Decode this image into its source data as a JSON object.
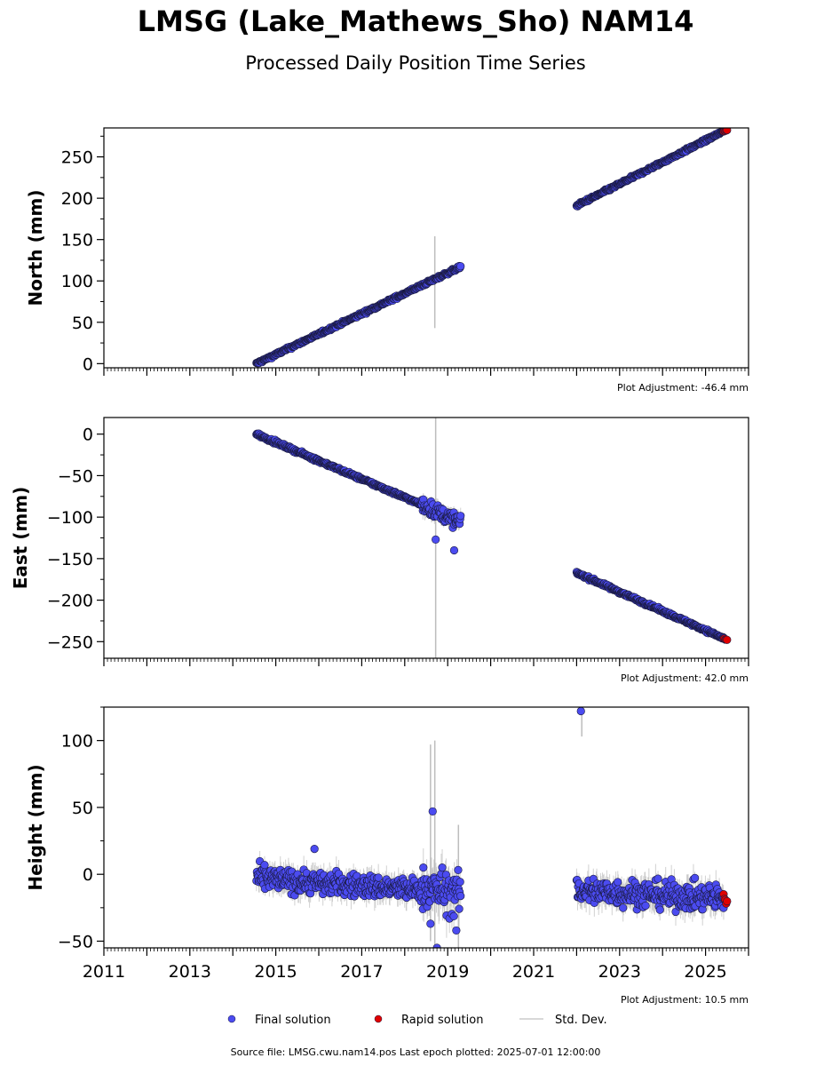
{
  "title": "LMSG (Lake_Mathews_Sho) NAM14",
  "subtitle": "Processed Daily Position Time Series",
  "footer": "Source file: LMSG.cwu.nam14.pos  Last epoch plotted: 2025-07-01 12:00:00",
  "legend": [
    {
      "label": "Final solution",
      "kind": "marker",
      "color": "#4b4bf0"
    },
    {
      "label": "Rapid solution",
      "kind": "marker",
      "color": "#e00000"
    },
    {
      "label": "Std. Dev.",
      "kind": "line",
      "color": "#cccccc"
    }
  ],
  "x_axis": {
    "range": [
      2011.0,
      2026.0
    ],
    "tick_values": [
      2011,
      2013,
      2015,
      2017,
      2019,
      2021,
      2023,
      2025
    ],
    "tick_labels": [
      "2011",
      "2013",
      "2015",
      "2017",
      "2019",
      "2021",
      "2023",
      "2025"
    ]
  },
  "colors": {
    "final": "#4b4bf0",
    "rapid": "#e00000",
    "stddev": "#bdbdbd",
    "edge": "#1a1a40"
  },
  "chart_data": [
    {
      "type": "scatter",
      "ylabel": "North (mm)",
      "adjustment": "Plot Adjustment: -46.4 mm",
      "xlim": [
        2011.0,
        2026.0
      ],
      "ylim": [
        -5,
        285
      ],
      "yticks": [
        0,
        50,
        100,
        150,
        200,
        250
      ],
      "ytick_labels": [
        "0",
        "50",
        "100",
        "150",
        "200",
        "250"
      ],
      "series": [
        {
          "name": "Final solution",
          "segments": [
            {
              "x0": 2014.55,
              "x1": 2019.3,
              "y0": 0,
              "y1": 117,
              "noise": 1.2
            },
            {
              "x0": 2022.0,
              "x1": 2025.42,
              "y0": 191,
              "y1": 281,
              "noise": 1.2
            }
          ],
          "outliers": []
        },
        {
          "name": "Rapid solution",
          "segments": [
            {
              "x0": 2025.42,
              "x1": 2025.5,
              "y0": 281,
              "y1": 283,
              "noise": 0.6
            }
          ]
        }
      ],
      "stddev_spikes": [
        {
          "x": 2018.7,
          "low": 43,
          "high": 154
        }
      ]
    },
    {
      "type": "scatter",
      "ylabel": "East (mm)",
      "adjustment": "Plot Adjustment: 42.0 mm",
      "xlim": [
        2011.0,
        2026.0
      ],
      "ylim": [
        -270,
        20
      ],
      "yticks": [
        0,
        -50,
        -100,
        -150,
        -200,
        -250
      ],
      "ytick_labels": [
        "0",
        "−50",
        "−100",
        "−150",
        "−200",
        "−250"
      ],
      "series": [
        {
          "name": "Final solution",
          "segments": [
            {
              "x0": 2014.55,
              "x1": 2018.4,
              "y0": 0,
              "y1": -85,
              "noise": 1.3
            },
            {
              "x0": 2018.4,
              "x1": 2019.3,
              "y0": -85,
              "y1": -107,
              "noise": 6
            },
            {
              "x0": 2022.0,
              "x1": 2025.42,
              "y0": -167,
              "y1": -246,
              "noise": 1.3
            }
          ],
          "outliers": [
            {
              "x": 2018.72,
              "y": -127
            },
            {
              "x": 2019.15,
              "y": -140
            }
          ]
        },
        {
          "name": "Rapid solution",
          "segments": [
            {
              "x0": 2025.42,
              "x1": 2025.5,
              "y0": -246,
              "y1": -248,
              "noise": 0.6
            }
          ]
        }
      ],
      "stddev_spikes": [
        {
          "x": 2018.72,
          "low": -270,
          "high": 20
        }
      ]
    },
    {
      "type": "scatter",
      "ylabel": "Height (mm)",
      "adjustment": "Plot Adjustment: 10.5 mm",
      "xlim": [
        2011.0,
        2026.0
      ],
      "ylim": [
        -55,
        125
      ],
      "yticks": [
        100,
        50,
        0,
        -50
      ],
      "ytick_labels": [
        "100",
        "50",
        "0",
        "−50"
      ],
      "series": [
        {
          "name": "Final solution",
          "segments": [
            {
              "x0": 2014.55,
              "x1": 2018.4,
              "y0": -3,
              "y1": -12,
              "noise": 6
            },
            {
              "x0": 2018.4,
              "x1": 2019.3,
              "y0": -10,
              "y1": -15,
              "noise": 11
            },
            {
              "x0": 2022.0,
              "x1": 2025.42,
              "y0": -12,
              "y1": -18,
              "noise": 7
            }
          ],
          "outliers": [
            {
              "x": 2015.9,
              "y": 19
            },
            {
              "x": 2018.65,
              "y": 47
            },
            {
              "x": 2018.6,
              "y": -37
            },
            {
              "x": 2018.75,
              "y": -55
            },
            {
              "x": 2019.2,
              "y": -42
            },
            {
              "x": 2022.1,
              "y": 122
            }
          ]
        },
        {
          "name": "Rapid solution",
          "segments": [
            {
              "x0": 2025.42,
              "x1": 2025.5,
              "y0": -16,
              "y1": -23,
              "noise": 2
            }
          ]
        }
      ],
      "stddev_spikes": [
        {
          "x": 2018.6,
          "low": -50,
          "high": 97
        },
        {
          "x": 2018.7,
          "low": -55,
          "high": 100
        },
        {
          "x": 2019.25,
          "low": -55,
          "high": 37
        },
        {
          "x": 2022.12,
          "low": 103,
          "high": 125
        }
      ]
    }
  ]
}
